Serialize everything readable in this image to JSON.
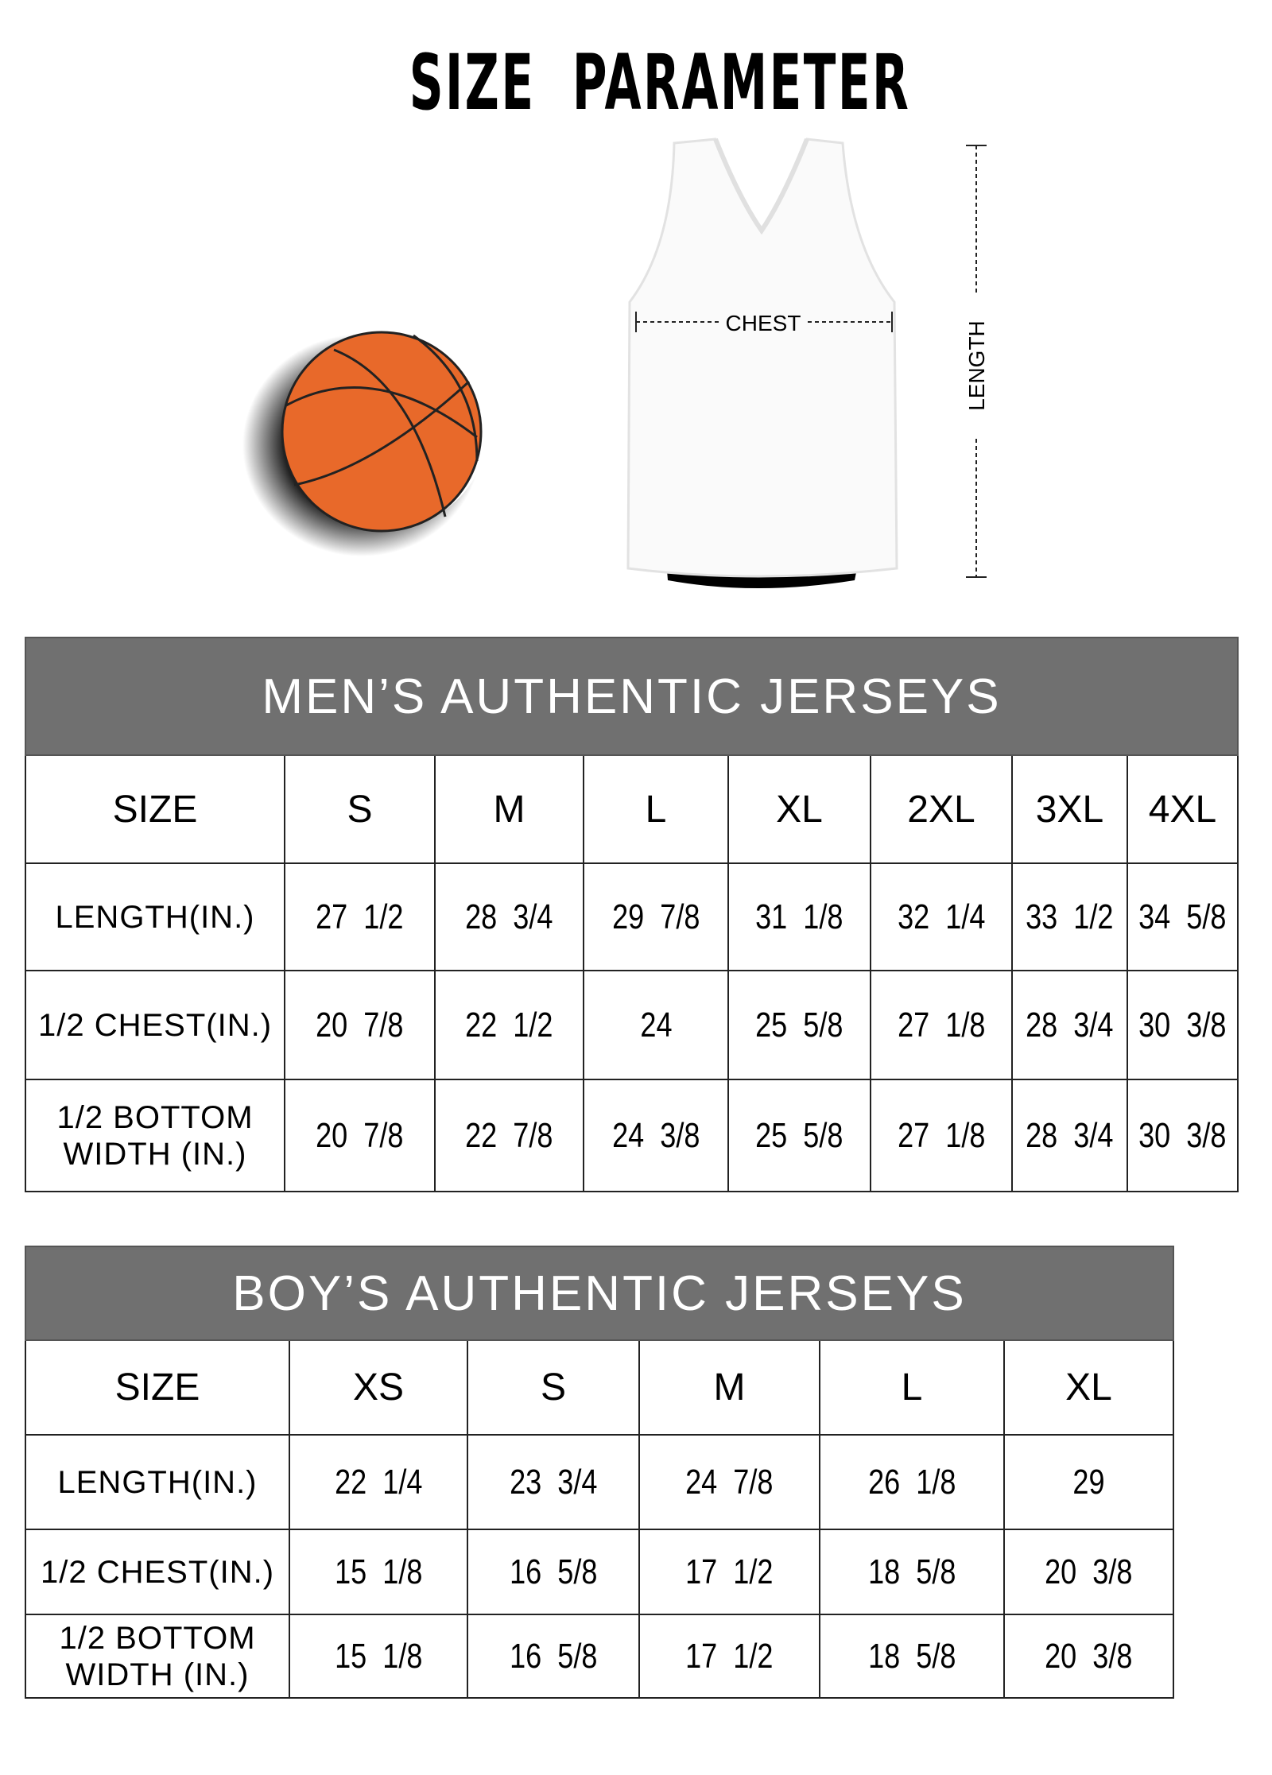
{
  "title": "SIZE  PARAMETER",
  "diagram": {
    "chest_label": "CHEST",
    "length_label": "LENGTH",
    "ball_color": "#E8692A",
    "header_color": "#707070"
  },
  "mens": {
    "heading": "MEN’S AUTHENTIC JERSEYS",
    "size_label": "SIZE",
    "sizes": [
      "S",
      "M",
      "L",
      "XL",
      "2XL",
      "3XL",
      "4XL"
    ],
    "rows": [
      {
        "label": "LENGTH(IN.)",
        "values": [
          "27  1/2",
          "28  3/4",
          "29  7/8",
          "31  1/8",
          "32  1/4",
          "33  1/2",
          "34  5/8"
        ]
      },
      {
        "label": "1/2 CHEST(IN.)",
        "values": [
          "20  7/8",
          "22  1/2",
          "24",
          "25  5/8",
          "27  1/8",
          "28  3/4",
          "30  3/8"
        ]
      },
      {
        "label": "1/2 BOTTOM WIDTH  (IN.)",
        "values": [
          "20  7/8",
          "22  7/8",
          "24  3/8",
          "25  5/8",
          "27  1/8",
          "28  3/4",
          "30  3/8"
        ]
      }
    ]
  },
  "boys": {
    "heading": "BOY’S AUTHENTIC JERSEYS",
    "size_label": "SIZE",
    "sizes": [
      "XS",
      "S",
      "M",
      "L",
      "XL"
    ],
    "rows": [
      {
        "label": "LENGTH(IN.)",
        "values": [
          "22  1/4",
          "23  3/4",
          "24  7/8",
          "26  1/8",
          "29"
        ]
      },
      {
        "label": "1/2 CHEST(IN.)",
        "values": [
          "15  1/8",
          "16  5/8",
          "17  1/2",
          "18  5/8",
          "20  3/8"
        ]
      },
      {
        "label": "1/2 BOTTOM WIDTH  (IN.)",
        "values": [
          "15  1/8",
          "16  5/8",
          "17  1/2",
          "18  5/8",
          "20  3/8"
        ]
      }
    ]
  }
}
